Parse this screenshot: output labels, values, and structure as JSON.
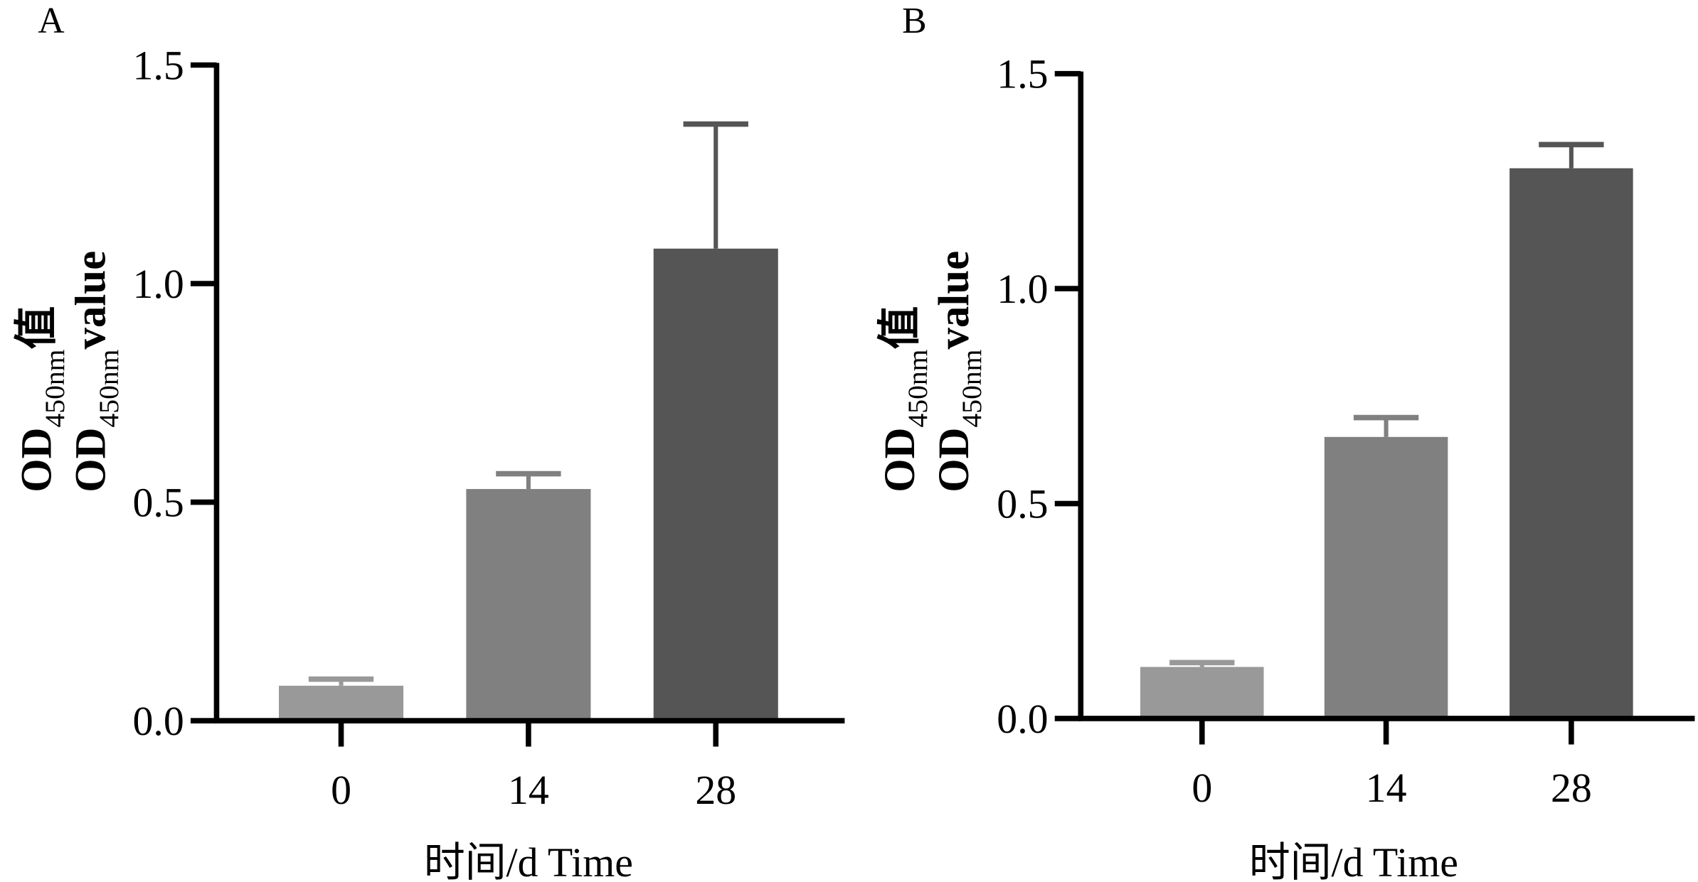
{
  "chart_data": [
    {
      "type": "bar",
      "panel_label": "A",
      "categories": [
        "0",
        "14",
        "28"
      ],
      "values": [
        0.08,
        0.53,
        1.08
      ],
      "error_upper": [
        0.095,
        0.565,
        1.365
      ],
      "bar_colors": [
        "#999999",
        "#808080",
        "#555555"
      ],
      "xlabel": "时间/d Time",
      "ylabel_cn": {
        "main": "OD",
        "sub": "450nm",
        "suffix": "值"
      },
      "ylabel_en": {
        "main": "OD",
        "sub": "450nm",
        "suffix": "value"
      },
      "yticks": [
        "0.0",
        "0.5",
        "1.0",
        "1.5"
      ],
      "ylim": [
        0,
        1.5
      ],
      "grid": false
    },
    {
      "type": "bar",
      "panel_label": "B",
      "categories": [
        "0",
        "14",
        "28"
      ],
      "values": [
        0.12,
        0.655,
        1.28
      ],
      "error_upper": [
        0.13,
        0.7,
        1.335
      ],
      "bar_colors": [
        "#999999",
        "#808080",
        "#555555"
      ],
      "xlabel": "时间/d Time",
      "ylabel_cn": {
        "main": "OD",
        "sub": "450nm",
        "suffix": "值"
      },
      "ylabel_en": {
        "main": "OD",
        "sub": "450nm",
        "suffix": "value"
      },
      "yticks": [
        "0.0",
        "0.5",
        "1.0",
        "1.5"
      ],
      "ylim": [
        0,
        1.5
      ],
      "grid": false
    }
  ]
}
